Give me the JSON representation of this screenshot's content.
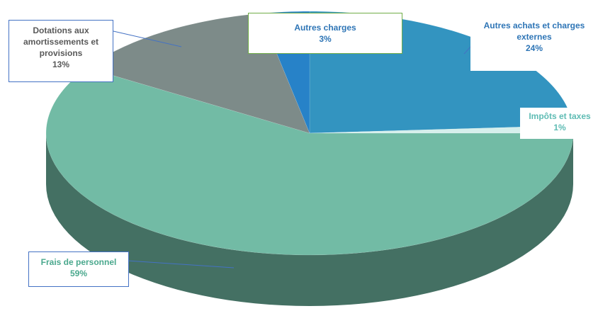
{
  "chart_data": {
    "type": "pie",
    "categories": [
      "Autres achats et charges externes",
      "Impôts et taxes",
      "Frais de personnel",
      "Dotations aux amortissements et provisions",
      "Autres charges"
    ],
    "values": [
      24,
      1,
      59,
      13,
      3
    ],
    "value_labels": [
      "24%",
      "1%",
      "59%",
      "13%",
      "3%"
    ],
    "colors": [
      "#3394c0",
      "#d6efec",
      "#72bba5",
      "#7d8b89",
      "#2782c8"
    ]
  }
}
